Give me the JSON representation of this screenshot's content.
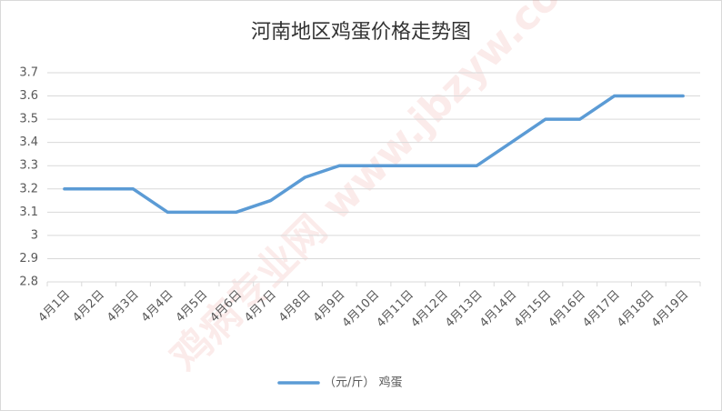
{
  "chart_data": {
    "type": "line",
    "title": "河南地区鸡蛋价格走势图",
    "watermark": "鸡病专业网 www.jbzyw.com",
    "categories": [
      "4月1日",
      "4月2日",
      "4月3日",
      "4月4日",
      "4月5日",
      "4月6日",
      "4月7日",
      "4月8日",
      "4月9日",
      "4月10日",
      "4月11日",
      "4月12日",
      "4月13日",
      "4月14日",
      "4月15日",
      "4月16日",
      "4月17日",
      "4月18日",
      "4月19日"
    ],
    "series": [
      {
        "name": "（元/斤） 鸡蛋",
        "color": "#5b9bd5",
        "values": [
          3.2,
          3.2,
          3.2,
          3.1,
          3.1,
          3.1,
          3.15,
          3.25,
          3.3,
          3.3,
          3.3,
          3.3,
          3.3,
          3.4,
          3.5,
          3.5,
          3.6,
          3.6,
          3.6
        ]
      }
    ],
    "ylim": [
      2.8,
      3.7
    ],
    "yticks": [
      2.8,
      2.9,
      3,
      3.1,
      3.2,
      3.3,
      3.4,
      3.5,
      3.6,
      3.7
    ],
    "grid": true,
    "legend": "bottom"
  }
}
